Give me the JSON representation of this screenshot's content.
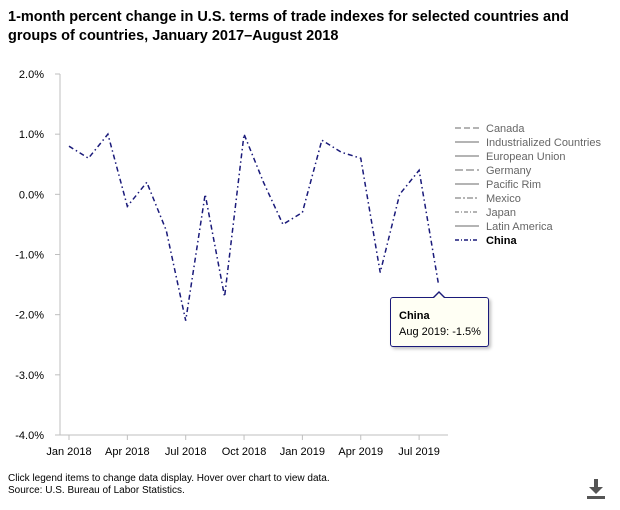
{
  "title": "1-month percent change in U.S. terms of trade indexes for selected countries and groups of countries, January 2017–August 2018",
  "footer": {
    "line1": "Click legend items to change data display. Hover over chart to view data.",
    "line2": "Source: U.S. Bureau of Labor Statistics."
  },
  "tooltip": {
    "series": "China",
    "text": "Aug 2019: -1.5%"
  },
  "icons": {
    "download": "download-icon"
  },
  "colors": {
    "china": "#1a1a7a",
    "legend_muted": "#888888",
    "legend_text_muted": "#666666",
    "grid": "#d8d8d8"
  },
  "chart_data": {
    "type": "line",
    "title": "1-month percent change in U.S. terms of trade indexes for selected countries and groups of countries, January 2017–August 2018",
    "xlabel": "",
    "ylabel": "",
    "ylim": [
      -4.0,
      2.0
    ],
    "yticks": [
      "2.0%",
      "1.0%",
      "0.0%",
      "-1.0%",
      "-2.0%",
      "-3.0%",
      "-4.0%"
    ],
    "ytick_values": [
      2.0,
      1.0,
      0.0,
      -1.0,
      -2.0,
      -3.0,
      -4.0
    ],
    "xticks": [
      "Jan 2018",
      "Apr 2018",
      "Jul 2018",
      "Oct 2018",
      "Jan 2019",
      "Apr 2019",
      "Jul 2019"
    ],
    "xtick_positions": [
      0,
      3,
      6,
      9,
      12,
      15,
      18
    ],
    "x": [
      "Jan 2018",
      "Feb 2018",
      "Mar 2018",
      "Apr 2018",
      "May 2018",
      "Jun 2018",
      "Jul 2018",
      "Aug 2018",
      "Sep 2018",
      "Oct 2018",
      "Nov 2018",
      "Dec 2018",
      "Jan 2019",
      "Feb 2019",
      "Mar 2019",
      "Apr 2019",
      "May 2019",
      "Jun 2019",
      "Jul 2019",
      "Aug 2019"
    ],
    "grid": false,
    "legend_position": "right",
    "legend": [
      {
        "name": "Canada",
        "dash": "6,3",
        "active": false
      },
      {
        "name": "Industrialized Countries",
        "dash": "",
        "active": false
      },
      {
        "name": "European Union",
        "dash": "",
        "active": false
      },
      {
        "name": "Germany",
        "dash": "8,3",
        "active": false
      },
      {
        "name": "Pacific Rim",
        "dash": "",
        "active": false
      },
      {
        "name": "Mexico",
        "dash": "6,2,2,2",
        "active": false
      },
      {
        "name": "Japan",
        "dash": "4,2,1,2",
        "active": false
      },
      {
        "name": "Latin America",
        "dash": "",
        "active": false
      },
      {
        "name": "China",
        "dash": "4,2,1,2",
        "active": true
      }
    ],
    "series": [
      {
        "name": "China",
        "values": [
          0.8,
          0.6,
          1.0,
          -0.2,
          0.2,
          -0.6,
          -2.1,
          0.0,
          -1.7,
          1.0,
          0.2,
          -0.5,
          -0.3,
          0.9,
          0.7,
          0.6,
          -1.3,
          0.0,
          0.4,
          -1.5
        ]
      }
    ]
  }
}
